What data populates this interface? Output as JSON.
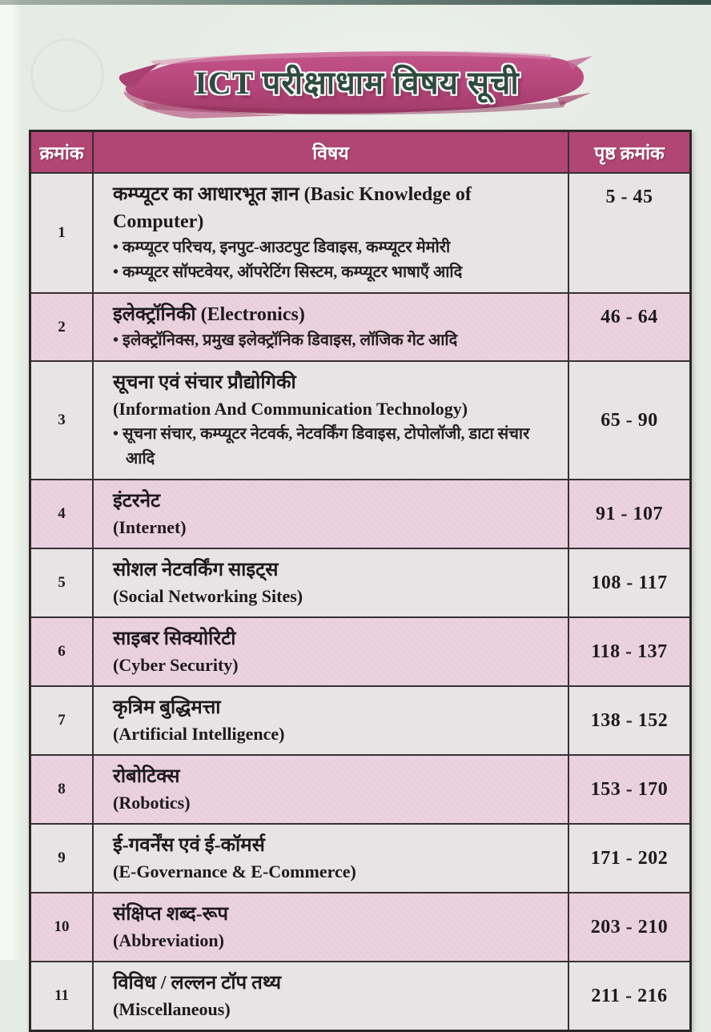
{
  "page": {
    "title": "ICT परीक्षाधाम विषय सूची"
  },
  "table": {
    "headers": {
      "serial": "क्रमांक",
      "subject": "विषय",
      "pages": "पृष्ठ क्रमांक"
    },
    "rows": [
      {
        "serial": "1",
        "headings": [
          "कम्प्यूटर का आधारभूत ज्ञान (Basic Knowledge of Computer)"
        ],
        "bullets": [
          "• कम्प्यूटर परिचय, इनपुट-आउटपुट डिवाइस, कम्प्यूटर मेमोरी",
          "• कम्प्यूटर सॉफ्टवेयर, ऑपरेटिंग सिस्टम, कम्प्यूटर भाषाएँ आदि"
        ],
        "pages": "5 - 45"
      },
      {
        "serial": "2",
        "headings": [
          "इलेक्ट्रॉनिकी (Electronics)"
        ],
        "bullets": [
          "• इलेक्ट्रॉनिक्स, प्रमुख इलेक्ट्रॉनिक डिवाइस, लॉजिक गेट आदि"
        ],
        "pages": "46 - 64"
      },
      {
        "serial": "3",
        "headings": [
          "सूचना एवं संचार प्रौद्योगिकी",
          "(Information And Communication Technology)"
        ],
        "bullets": [
          "• सूचना संचार, कम्प्यूटर नेटवर्क, नेटवर्किंग डिवाइस, टोपोलॉजी, डाटा संचार आदि"
        ],
        "pages": "65 - 90"
      },
      {
        "serial": "4",
        "headings": [
          "इंटरनेट",
          "(Internet)"
        ],
        "bullets": [],
        "pages": "91 - 107"
      },
      {
        "serial": "5",
        "headings": [
          "सोशल नेटवर्किंग साइट्स",
          "(Social Networking Sites)"
        ],
        "bullets": [],
        "pages": "108 - 117"
      },
      {
        "serial": "6",
        "headings": [
          "साइबर सिक्योरिटी",
          "(Cyber Security)"
        ],
        "bullets": [],
        "pages": "118 - 137"
      },
      {
        "serial": "7",
        "headings": [
          "कृत्रिम बुद्धिमत्ता",
          "(Artificial Intelligence)"
        ],
        "bullets": [],
        "pages": "138 - 152"
      },
      {
        "serial": "8",
        "headings": [
          "रोबोटिक्स",
          "(Robotics)"
        ],
        "bullets": [],
        "pages": "153 - 170"
      },
      {
        "serial": "9",
        "headings": [
          "ई-गवर्नेंस एवं ई-कॉमर्स",
          "(E-Governance & E-Commerce)"
        ],
        "bullets": [],
        "pages": "171 - 202"
      },
      {
        "serial": "10",
        "headings": [
          "संक्षिप्त शब्द-रूप",
          "(Abbreviation)"
        ],
        "bullets": [],
        "pages": "203 - 210"
      },
      {
        "serial": "11",
        "headings": [
          "विविध / लल्लन टॉप तथ्य",
          "(Miscellaneous)"
        ],
        "bullets": [],
        "pages": "211 - 216"
      }
    ]
  },
  "colors": {
    "page_bg": "#e6ece5",
    "header_bg": "#b14573",
    "row_pink": "#e9cedb",
    "row_light": "#e7e4e5",
    "banner_magenta": "#b9497d",
    "banner_dark": "#96355f",
    "banner_light": "#d88fb2",
    "title_text": "#2e4b3e"
  }
}
